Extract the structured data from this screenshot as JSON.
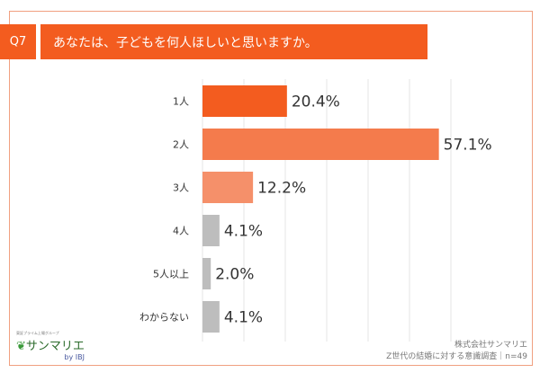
{
  "question": {
    "number": "Q7",
    "text": "あなたは、子どもを何人ほしいと思いますか。"
  },
  "chart_data": {
    "type": "bar",
    "orientation": "horizontal",
    "categories": [
      "1人",
      "2人",
      "3人",
      "4人",
      "5人以上",
      "わからない"
    ],
    "values": [
      20.4,
      57.1,
      12.2,
      4.1,
      2.0,
      4.1
    ],
    "labels": [
      "20.4%",
      "57.1%",
      "12.2%",
      "4.1%",
      "2.0%",
      "4.1%"
    ],
    "colors": [
      "#f35c1f",
      "#f47b4c",
      "#f5906a",
      "#bdbdbd",
      "#bdbdbd",
      "#bdbdbd"
    ],
    "xlim": [
      0,
      60
    ],
    "grid": true,
    "unit": "%"
  },
  "logo": {
    "tagline": "東証プライム上場グループ",
    "name": "サンマリエ",
    "by": "by IBJ"
  },
  "credit": {
    "company": "株式会社サンマリエ",
    "survey": "Z世代の結婚に対する意識調査｜n=49"
  }
}
